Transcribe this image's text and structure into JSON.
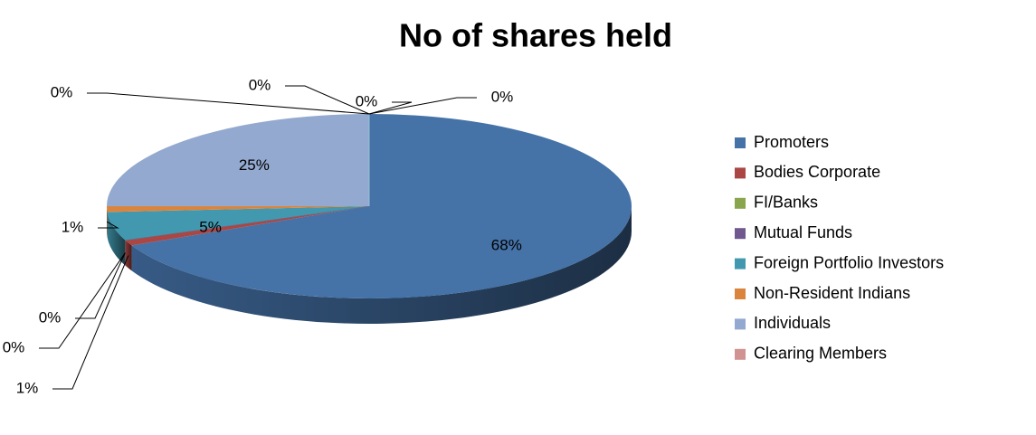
{
  "chart_data": {
    "type": "pie3d",
    "title": "No of shares held",
    "categories": [
      "Promoters",
      "Bodies Corporate",
      "FI/Banks",
      "Mutual Funds",
      "Foreign Portfolio Investors",
      "Non-Resident Indians",
      "Individuals",
      "Clearing Members",
      null,
      null,
      null
    ],
    "values": [
      68,
      1,
      0,
      0,
      5,
      1,
      25,
      0,
      0,
      0,
      0
    ],
    "value_labels": [
      "68%",
      "1%",
      "0%",
      "0%",
      "5%",
      "1%",
      "25%",
      "0%",
      "0%",
      "0%",
      "0%"
    ],
    "colors": [
      "#4572a7",
      "#aa4643",
      "#89a54e",
      "#71588f",
      "#4198af",
      "#db843d",
      "#93a9cf",
      "#d19392",
      "#b9cd96",
      "#a99bbd",
      "#91c3d5"
    ],
    "legend": "right"
  }
}
